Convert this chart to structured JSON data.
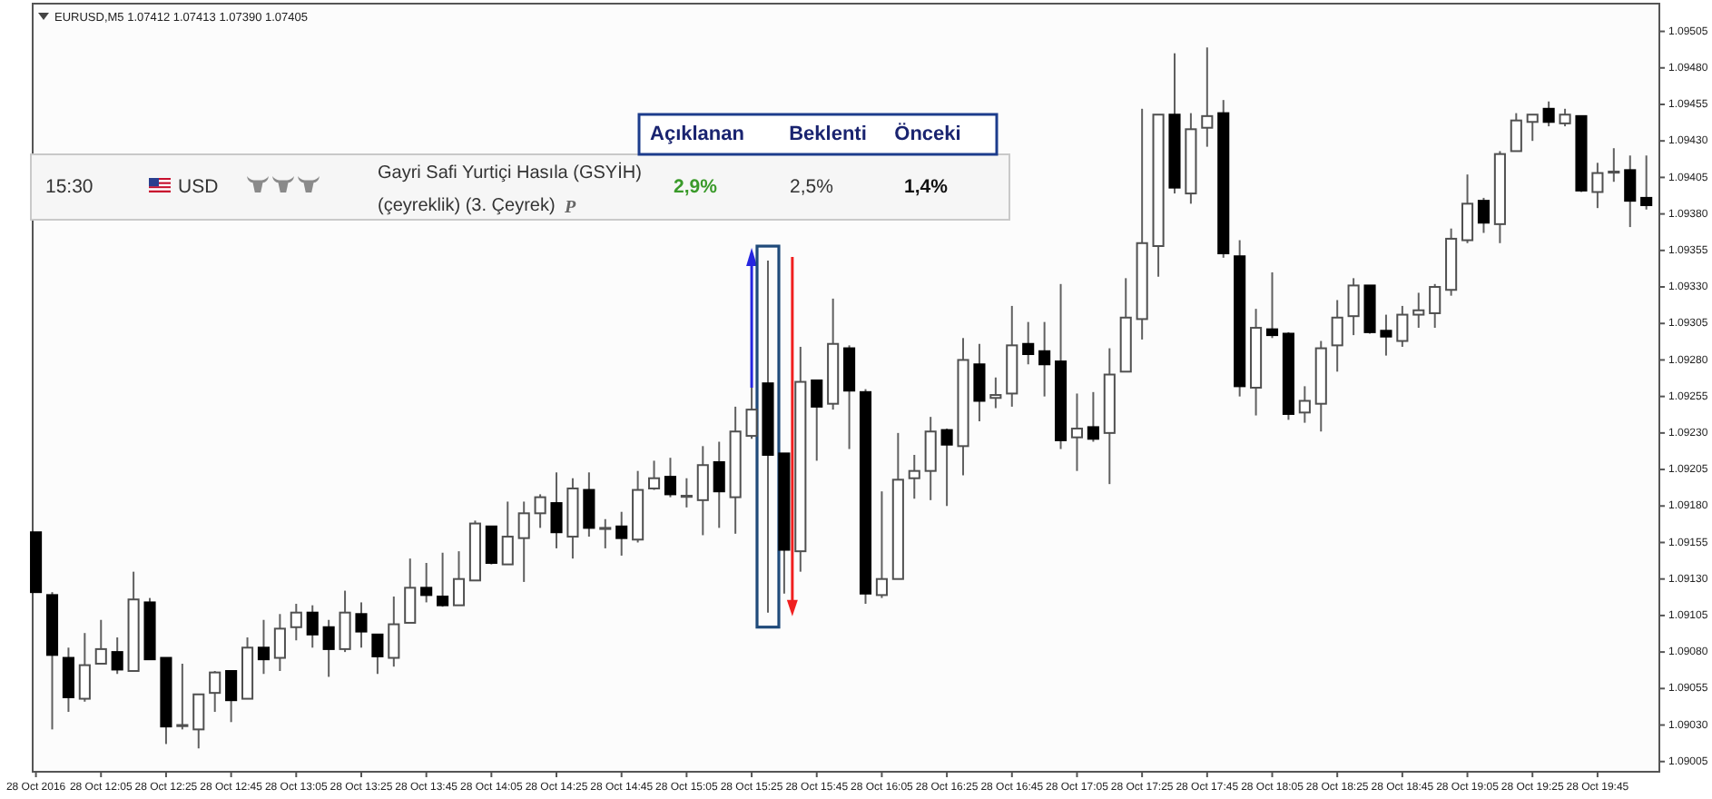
{
  "chart_data": {
    "type": "candlestick",
    "title": "EURUSD,M5 1.07412 1.07413 1.07390 1.07405",
    "annotations": [
      "Açıklanan",
      "Beklenti",
      "Önceki",
      "15:30",
      "USD",
      "Gayri Safi Yurtiçi Hasıla (GSYİH)",
      "(çeyreklik) (3. Çeyrek)",
      "P",
      "2,9%",
      "2,5%",
      "1,4%"
    ],
    "x": [
      "2016-10-28T11:45",
      "2016-10-28T11:50",
      "2016-10-28T11:55",
      "2016-10-28T12:00",
      "2016-10-28T12:05",
      "2016-10-28T12:10",
      "2016-10-28T12:15",
      "2016-10-28T12:20",
      "2016-10-28T12:25",
      "2016-10-28T12:30",
      "2016-10-28T12:35",
      "2016-10-28T12:40",
      "2016-10-28T12:45",
      "2016-10-28T12:50",
      "2016-10-28T12:55",
      "2016-10-28T13:00",
      "2016-10-28T13:05",
      "2016-10-28T13:10",
      "2016-10-28T13:15",
      "2016-10-28T13:20",
      "2016-10-28T13:25",
      "2016-10-28T13:30",
      "2016-10-28T13:35",
      "2016-10-28T13:40",
      "2016-10-28T13:45",
      "2016-10-28T13:50",
      "2016-10-28T13:55",
      "2016-10-28T14:00",
      "2016-10-28T14:05",
      "2016-10-28T14:10",
      "2016-10-28T14:15",
      "2016-10-28T14:20",
      "2016-10-28T14:25",
      "2016-10-28T14:30",
      "2016-10-28T14:35",
      "2016-10-28T14:40",
      "2016-10-28T14:45",
      "2016-10-28T14:50",
      "2016-10-28T14:55",
      "2016-10-28T15:00",
      "2016-10-28T15:05",
      "2016-10-28T15:10",
      "2016-10-28T15:15",
      "2016-10-28T15:20",
      "2016-10-28T15:25",
      "2016-10-28T15:30",
      "2016-10-28T15:35",
      "2016-10-28T15:40",
      "2016-10-28T15:45",
      "2016-10-28T15:50",
      "2016-10-28T15:55",
      "2016-10-28T16:00",
      "2016-10-28T16:05",
      "2016-10-28T16:10",
      "2016-10-28T16:15",
      "2016-10-28T16:20",
      "2016-10-28T16:25",
      "2016-10-28T16:30",
      "2016-10-28T16:35",
      "2016-10-28T16:40",
      "2016-10-28T16:45",
      "2016-10-28T16:50",
      "2016-10-28T16:55",
      "2016-10-28T17:00",
      "2016-10-28T17:05",
      "2016-10-28T17:10",
      "2016-10-28T17:15",
      "2016-10-28T17:20",
      "2016-10-28T17:25",
      "2016-10-28T17:30",
      "2016-10-28T17:35",
      "2016-10-28T17:40",
      "2016-10-28T17:45",
      "2016-10-28T17:50",
      "2016-10-28T17:55",
      "2016-10-28T18:00",
      "2016-10-28T18:05",
      "2016-10-28T18:10",
      "2016-10-28T18:15",
      "2016-10-28T18:20",
      "2016-10-28T18:25",
      "2016-10-28T18:30",
      "2016-10-28T18:35",
      "2016-10-28T18:40",
      "2016-10-28T18:45",
      "2016-10-28T18:50",
      "2016-10-28T18:55",
      "2016-10-28T19:00",
      "2016-10-28T19:05",
      "2016-10-28T19:10",
      "2016-10-28T19:15",
      "2016-10-28T19:20",
      "2016-10-28T19:25",
      "2016-10-28T19:30",
      "2016-10-28T19:35",
      "2016-10-28T19:40",
      "2016-10-28T19:45",
      "2016-10-28T19:50",
      "2016-10-28T19:55",
      "2016-10-28T20:00"
    ],
    "ohlc": [
      [
        1.09162,
        1.09162,
        1.09121,
        1.09121
      ],
      [
        1.09119,
        1.09121,
        1.09027,
        1.09078
      ],
      [
        1.09076,
        1.09083,
        1.09039,
        1.09049
      ],
      [
        1.09048,
        1.09093,
        1.09046,
        1.09071
      ],
      [
        1.09072,
        1.09102,
        1.09072,
        1.09082
      ],
      [
        1.0908,
        1.0909,
        1.09065,
        1.09068
      ],
      [
        1.09067,
        1.09135,
        1.09067,
        1.09116
      ],
      [
        1.09114,
        1.09117,
        1.09075,
        1.09075
      ],
      [
        1.09076,
        1.09076,
        1.09017,
        1.09029
      ],
      [
        1.0903,
        1.09072,
        1.09027,
        1.0903
      ],
      [
        1.09027,
        1.09051,
        1.09014,
        1.09051
      ],
      [
        1.09052,
        1.09067,
        1.09039,
        1.09066
      ],
      [
        1.09067,
        1.09067,
        1.09032,
        1.09047
      ],
      [
        1.09048,
        1.0909,
        1.09048,
        1.09083
      ],
      [
        1.09083,
        1.09102,
        1.09065,
        1.09075
      ],
      [
        1.09076,
        1.09106,
        1.09067,
        1.09096
      ],
      [
        1.09097,
        1.09113,
        1.09088,
        1.09107
      ],
      [
        1.09107,
        1.09112,
        1.09083,
        1.09092
      ],
      [
        1.09097,
        1.09102,
        1.09063,
        1.09082
      ],
      [
        1.09082,
        1.09122,
        1.0908,
        1.09107
      ],
      [
        1.09106,
        1.09114,
        1.09083,
        1.09094
      ],
      [
        1.09092,
        1.09092,
        1.09065,
        1.09077
      ],
      [
        1.09076,
        1.09118,
        1.0907,
        1.09099
      ],
      [
        1.091,
        1.09144,
        1.091,
        1.09124
      ],
      [
        1.09124,
        1.09141,
        1.09114,
        1.09119
      ],
      [
        1.09118,
        1.09148,
        1.09111,
        1.09112
      ],
      [
        1.09112,
        1.09149,
        1.09112,
        1.0913
      ],
      [
        1.09129,
        1.0917,
        1.09129,
        1.09168
      ],
      [
        1.09166,
        1.09166,
        1.0914,
        1.09141
      ],
      [
        1.0914,
        1.09183,
        1.0914,
        1.09159
      ],
      [
        1.09158,
        1.09183,
        1.09128,
        1.09175
      ],
      [
        1.09175,
        1.09188,
        1.09165,
        1.09186
      ],
      [
        1.09182,
        1.09203,
        1.09151,
        1.09162
      ],
      [
        1.09159,
        1.09199,
        1.09144,
        1.09192
      ],
      [
        1.09191,
        1.09203,
        1.09159,
        1.09165
      ],
      [
        1.09165,
        1.09171,
        1.09151,
        1.09165
      ],
      [
        1.09166,
        1.09176,
        1.09146,
        1.09158
      ],
      [
        1.09157,
        1.09204,
        1.09155,
        1.09191
      ],
      [
        1.09192,
        1.09211,
        1.09191,
        1.09199
      ],
      [
        1.092,
        1.09213,
        1.09186,
        1.09188
      ],
      [
        1.09187,
        1.09199,
        1.09179,
        1.09187
      ],
      [
        1.09184,
        1.09221,
        1.0916,
        1.09208
      ],
      [
        1.0921,
        1.09224,
        1.09165,
        1.0919
      ],
      [
        1.09186,
        1.09248,
        1.09161,
        1.09231
      ],
      [
        1.09228,
        1.09261,
        1.09226,
        1.09246
      ],
      [
        1.09264,
        1.09348,
        1.09107,
        1.09215
      ],
      [
        1.09216,
        1.09216,
        1.0912,
        1.0915
      ],
      [
        1.09149,
        1.09289,
        1.09135,
        1.09265
      ],
      [
        1.09266,
        1.09266,
        1.09211,
        1.09248
      ],
      [
        1.0925,
        1.09322,
        1.09246,
        1.09291
      ],
      [
        1.09288,
        1.0929,
        1.09219,
        1.09259
      ],
      [
        1.09258,
        1.0926,
        1.09113,
        1.0912
      ],
      [
        1.09119,
        1.0919,
        1.09117,
        1.0913
      ],
      [
        1.0913,
        1.0923,
        1.0913,
        1.09198
      ],
      [
        1.09199,
        1.09215,
        1.09185,
        1.09204
      ],
      [
        1.09204,
        1.09241,
        1.09184,
        1.09231
      ],
      [
        1.09232,
        1.09233,
        1.0918,
        1.09222
      ],
      [
        1.09221,
        1.09295,
        1.09201,
        1.0928
      ],
      [
        1.09277,
        1.09291,
        1.09238,
        1.09252
      ],
      [
        1.09254,
        1.09268,
        1.09247,
        1.09256
      ],
      [
        1.09257,
        1.09317,
        1.09248,
        1.0929
      ],
      [
        1.09291,
        1.09306,
        1.09277,
        1.09284
      ],
      [
        1.09286,
        1.09306,
        1.09255,
        1.09277
      ],
      [
        1.09279,
        1.09332,
        1.09219,
        1.09225
      ],
      [
        1.09227,
        1.09257,
        1.09204,
        1.09233
      ],
      [
        1.09234,
        1.09258,
        1.09224,
        1.09226
      ],
      [
        1.0923,
        1.09288,
        1.09195,
        1.0927
      ],
      [
        1.09272,
        1.09336,
        1.09272,
        1.09309
      ],
      [
        1.09308,
        1.09452,
        1.09294,
        1.0936
      ],
      [
        1.09358,
        1.09448,
        1.09337,
        1.09448
      ],
      [
        1.09448,
        1.0949,
        1.09394,
        1.09398
      ],
      [
        1.09394,
        1.09449,
        1.09387,
        1.09438
      ],
      [
        1.09439,
        1.09494,
        1.09426,
        1.09447
      ],
      [
        1.09449,
        1.09458,
        1.0935,
        1.09353
      ],
      [
        1.09351,
        1.09362,
        1.09255,
        1.09262
      ],
      [
        1.09261,
        1.09315,
        1.09242,
        1.09302
      ],
      [
        1.09301,
        1.0934,
        1.09295,
        1.09297
      ],
      [
        1.09298,
        1.09299,
        1.09239,
        1.09243
      ],
      [
        1.09244,
        1.09262,
        1.09237,
        1.09252
      ],
      [
        1.0925,
        1.09293,
        1.09231,
        1.09288
      ],
      [
        1.0929,
        1.09321,
        1.09272,
        1.09309
      ],
      [
        1.0931,
        1.09336,
        1.09297,
        1.09331
      ],
      [
        1.09331,
        1.09331,
        1.09298,
        1.09299
      ],
      [
        1.093,
        1.09311,
        1.09283,
        1.09296
      ],
      [
        1.09293,
        1.09317,
        1.09289,
        1.09311
      ],
      [
        1.09311,
        1.09326,
        1.09302,
        1.09314
      ],
      [
        1.09312,
        1.09332,
        1.09302,
        1.0933
      ],
      [
        1.09328,
        1.0937,
        1.09324,
        1.09363
      ],
      [
        1.09362,
        1.09407,
        1.0936,
        1.09387
      ],
      [
        1.09389,
        1.09391,
        1.09367,
        1.09374
      ],
      [
        1.09373,
        1.09423,
        1.0936,
        1.09421
      ],
      [
        1.09423,
        1.09449,
        1.09423,
        1.09444
      ],
      [
        1.09443,
        1.09448,
        1.0943,
        1.09448
      ],
      [
        1.09452,
        1.09457,
        1.0944,
        1.09443
      ],
      [
        1.09442,
        1.09452,
        1.0944,
        1.09448
      ],
      [
        1.09447,
        1.09447,
        1.09395,
        1.09396
      ],
      [
        1.09395,
        1.09415,
        1.09384,
        1.09408
      ],
      [
        1.09409,
        1.09425,
        1.09402,
        1.09409
      ],
      [
        1.0941,
        1.0942,
        1.09371,
        1.09389
      ],
      [
        1.09391,
        1.0942,
        1.09383,
        1.09386
      ]
    ],
    "xlim": [
      "2016-10-28T11:44",
      "2016-10-28T20:04"
    ],
    "xticks": [
      {
        "value": "2016-10-28T11:45",
        "label": "28 Oct 2016"
      },
      {
        "value": "2016-10-28T12:05",
        "label": "28 Oct 12:05"
      },
      {
        "value": "2016-10-28T12:25",
        "label": "28 Oct 12:25"
      },
      {
        "value": "2016-10-28T12:45",
        "label": "28 Oct 12:45"
      },
      {
        "value": "2016-10-28T13:05",
        "label": "28 Oct 13:05"
      },
      {
        "value": "2016-10-28T13:25",
        "label": "28 Oct 13:25"
      },
      {
        "value": "2016-10-28T13:45",
        "label": "28 Oct 13:45"
      },
      {
        "value": "2016-10-28T14:05",
        "label": "28 Oct 14:05"
      },
      {
        "value": "2016-10-28T14:25",
        "label": "28 Oct 14:25"
      },
      {
        "value": "2016-10-28T14:45",
        "label": "28 Oct 14:45"
      },
      {
        "value": "2016-10-28T15:05",
        "label": "28 Oct 15:05"
      },
      {
        "value": "2016-10-28T15:25",
        "label": "28 Oct 15:25"
      },
      {
        "value": "2016-10-28T15:45",
        "label": "28 Oct 15:45"
      },
      {
        "value": "2016-10-28T16:05",
        "label": "28 Oct 16:05"
      },
      {
        "value": "2016-10-28T16:25",
        "label": "28 Oct 16:25"
      },
      {
        "value": "2016-10-28T16:45",
        "label": "28 Oct 16:45"
      },
      {
        "value": "2016-10-28T17:05",
        "label": "28 Oct 17:05"
      },
      {
        "value": "2016-10-28T17:25",
        "label": "28 Oct 17:25"
      },
      {
        "value": "2016-10-28T17:45",
        "label": "28 Oct 17:45"
      },
      {
        "value": "2016-10-28T18:05",
        "label": "28 Oct 18:05"
      },
      {
        "value": "2016-10-28T18:25",
        "label": "28 Oct 18:25"
      },
      {
        "value": "2016-10-28T18:45",
        "label": "28 Oct 18:45"
      },
      {
        "value": "2016-10-28T19:05",
        "label": "28 Oct 19:05"
      },
      {
        "value": "2016-10-28T19:25",
        "label": "28 Oct 19:25"
      },
      {
        "value": "2016-10-28T19:45",
        "label": "28 Oct 19:45"
      }
    ],
    "ylim": [
      1.08998,
      1.09524
    ],
    "yticks": [
      1.09005,
      {
        "value": 1.0903,
        "label": "1.09030"
      },
      1.09055,
      {
        "value": 1.0908,
        "label": "1.09080"
      },
      1.09105,
      {
        "value": 1.0913,
        "label": "1.09130"
      },
      1.09155,
      {
        "value": 1.0918,
        "label": "1.09180"
      },
      1.09205,
      {
        "value": 1.0923,
        "label": "1.09230"
      },
      1.09255,
      {
        "value": 1.0928,
        "label": "1.09280"
      },
      1.09305,
      {
        "value": 1.0933,
        "label": "1.09330"
      },
      1.09355,
      {
        "value": 1.0938,
        "label": "1.09380"
      },
      1.09405,
      {
        "value": 1.0943,
        "label": "1.09430"
      },
      1.09455,
      {
        "value": 1.0948,
        "label": "1.09480"
      },
      1.09505
    ]
  }
}
